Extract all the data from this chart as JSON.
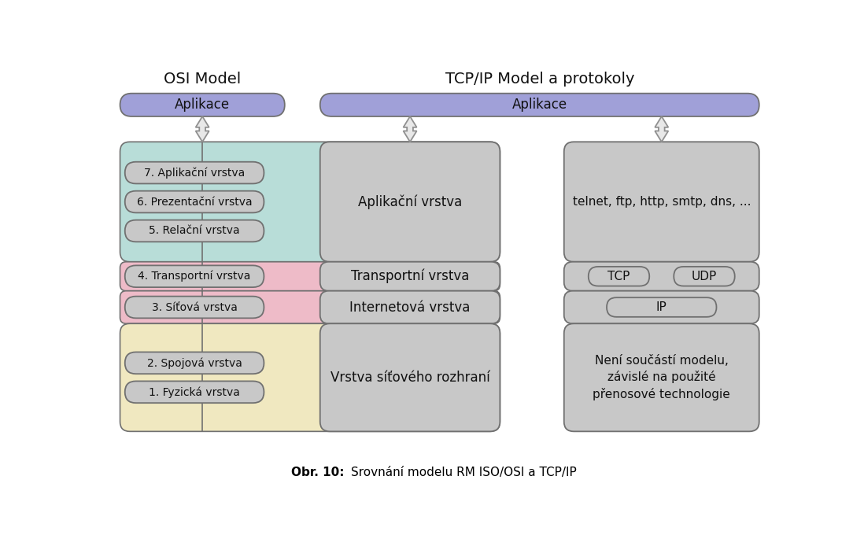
{
  "title_left": "OSI Model",
  "title_right": "TCP/IP Model a protokoly",
  "caption_bold": "Obr. 10:",
  "caption_rest": "Srovnání modelu RM ISO/OSI a TCP/IP",
  "bg_color": "#ffffff",
  "purple": "#a0a0d8",
  "teal": "#b8ddd8",
  "pink": "#eebbc8",
  "yellow": "#f0e8c0",
  "gray_dark": "#b8b8b8",
  "gray_mid": "#c8c8c8",
  "gray_pill": "#c8c8c8",
  "border": "#707070",
  "arrow_face": "#e8e8e8",
  "arrow_edge": "#909090"
}
